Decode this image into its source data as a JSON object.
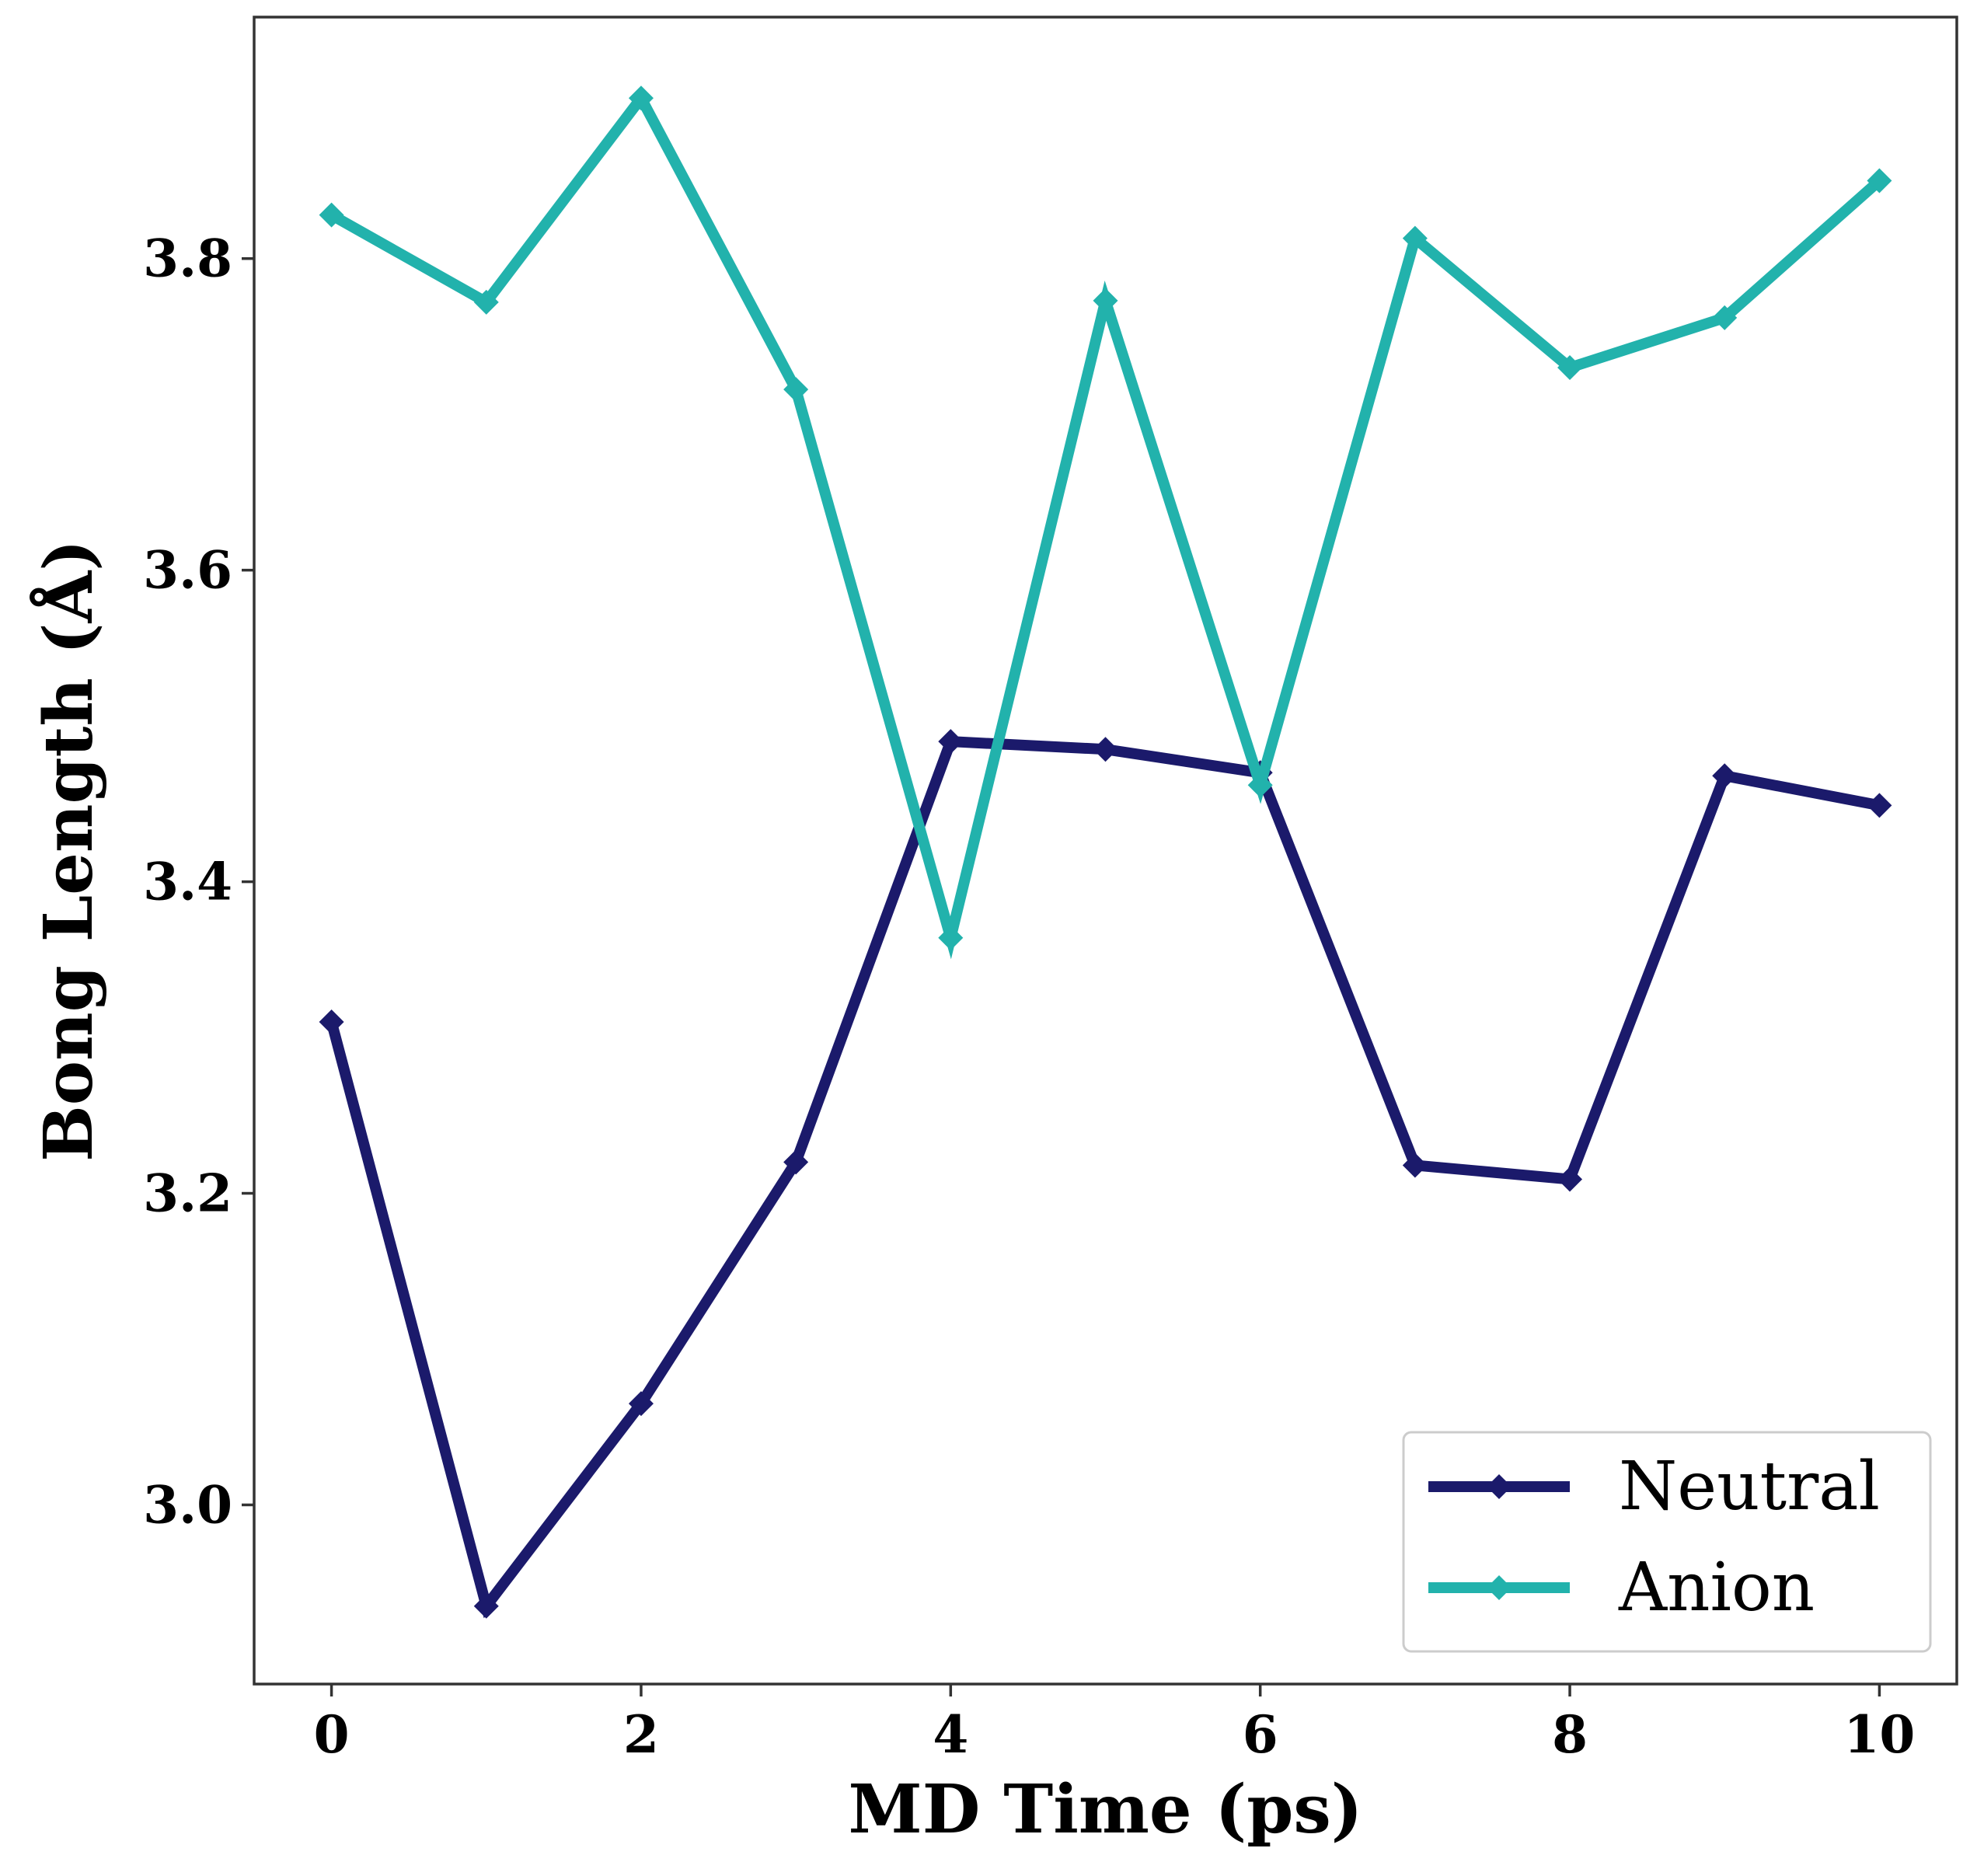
{
  "chart_data": {
    "type": "line",
    "title": "",
    "xlabel": "MD Time (ps)",
    "ylabel": "Bong Length (Å)",
    "xlim": [
      -0.5,
      10.5
    ],
    "ylim": [
      2.885,
      3.955
    ],
    "xticks": [
      0,
      2,
      4,
      6,
      8,
      10
    ],
    "xtick_labels": [
      "0",
      "2",
      "4",
      "6",
      "8",
      "10"
    ],
    "yticks": [
      3.0,
      3.2,
      3.4,
      3.6,
      3.8
    ],
    "ytick_labels": [
      "3.0",
      "3.2",
      "3.4",
      "3.6",
      "3.8"
    ],
    "grid": false,
    "legend_position": "lower-right",
    "x": [
      0,
      1,
      2,
      3,
      4,
      5,
      6,
      7,
      8,
      9,
      10
    ],
    "series": [
      {
        "name": "Neutral",
        "color": "#1b1a6b",
        "marker": "diamond",
        "values": [
          3.31,
          2.935,
          3.065,
          3.22,
          3.49,
          3.485,
          3.47,
          3.218,
          3.209,
          3.468,
          3.449
        ]
      },
      {
        "name": "Anion",
        "color": "#22b2ac",
        "marker": "diamond",
        "values": [
          3.828,
          3.772,
          3.903,
          3.716,
          3.364,
          3.773,
          3.462,
          3.813,
          3.73,
          3.762,
          3.85
        ]
      }
    ]
  }
}
